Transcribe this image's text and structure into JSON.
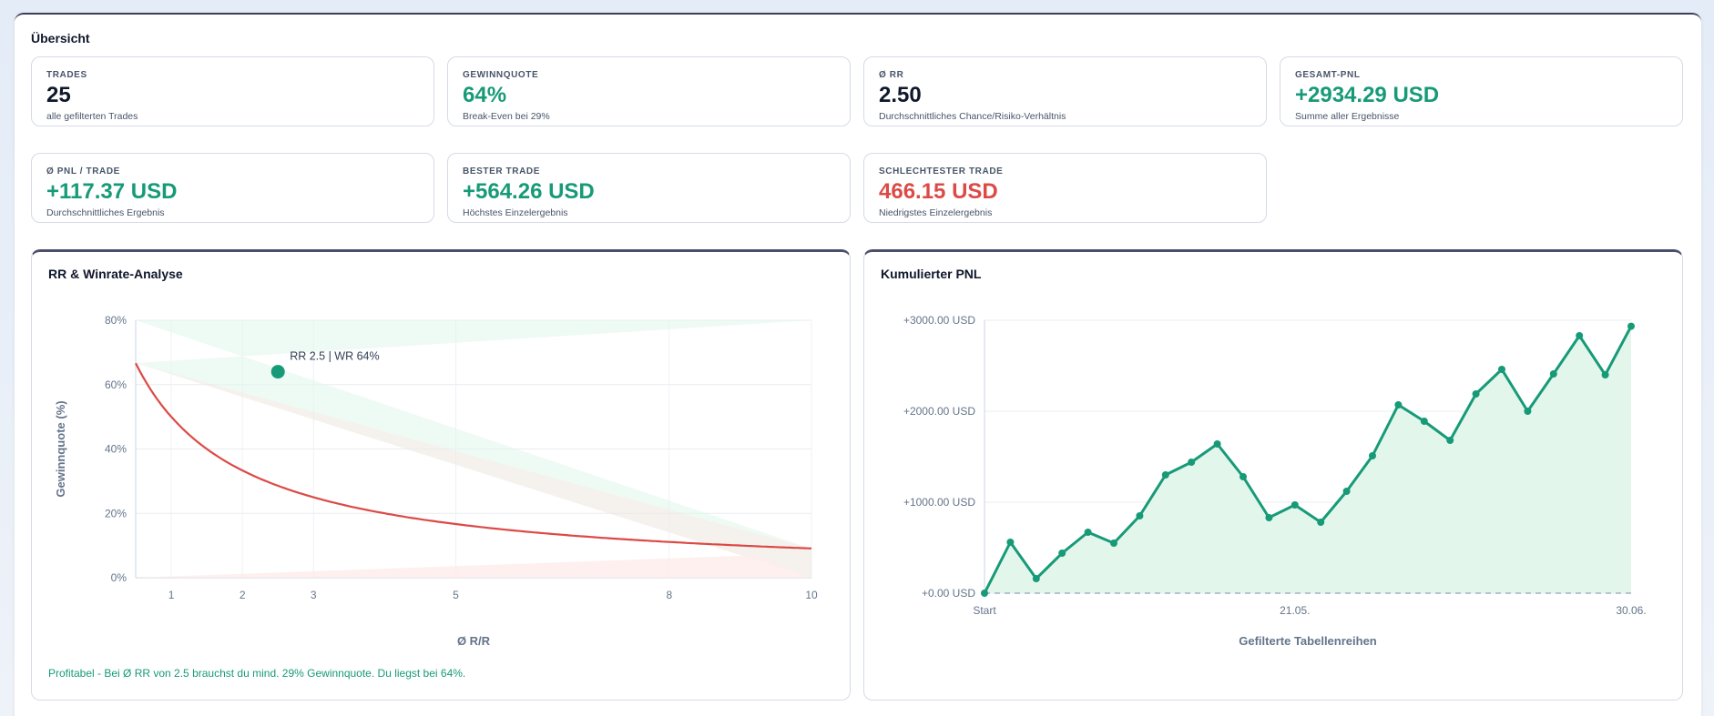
{
  "overview": {
    "title": "Übersicht"
  },
  "cards": [
    {
      "label": "TRADES",
      "value": "25",
      "sub": "alle gefilterten Trades",
      "tone": "dark"
    },
    {
      "label": "GEWINNQUOTE",
      "value": "64%",
      "sub": "Break-Even bei 29%",
      "tone": "green"
    },
    {
      "label": "ø RR",
      "value": "2.50",
      "sub": "Durchschnittliches Chance/Risiko-Verhältnis",
      "tone": "dark"
    },
    {
      "label": "GESAMT-PNL",
      "value": "+2934.29 USD",
      "sub": "Summe aller Ergebnisse",
      "tone": "green"
    },
    {
      "label": "ø PNL / TRADE",
      "value": "+117.37 USD",
      "sub": "Durchschnittliches Ergebnis",
      "tone": "green"
    },
    {
      "label": "BESTER TRADE",
      "value": "+564.26 USD",
      "sub": "Höchstes Einzelergebnis",
      "tone": "green"
    },
    {
      "label": "SCHLECHTESTER TRADE",
      "value": "466.15 USD",
      "sub": "Niedrigstes Einzelergebnis",
      "tone": "red"
    }
  ],
  "colors": {
    "green": "#179a78",
    "red": "#dc4a46",
    "fill_green": "#e3f6ec",
    "fill_red": "#fdeceb"
  },
  "chart_data": [
    {
      "type": "line",
      "title": "RR & Winrate-Analyse",
      "xlabel": "Ø R/R",
      "ylabel": "Gewinnquote (%)",
      "xlim": [
        0.5,
        10
      ],
      "ylim": [
        0,
        80
      ],
      "x_ticks": [
        1,
        2,
        3,
        5,
        8,
        10
      ],
      "y_ticks": [
        "0%",
        "20%",
        "40%",
        "60%",
        "80%"
      ],
      "y_tick_values": [
        0,
        20,
        40,
        60,
        80
      ],
      "series": [
        {
          "style": "break-even-curve",
          "x": [
            0.5,
            1,
            2,
            3,
            5,
            8,
            10
          ],
          "y": [
            66.7,
            50,
            33.3,
            25,
            16.7,
            11.1,
            9.1
          ]
        }
      ],
      "point": {
        "x": 2.5,
        "y": 64,
        "label": "RR 2.5 | WR 64%"
      },
      "grid": true,
      "note": "Profitabel - Bei Ø RR von 2.5 brauchst du mind. 29% Gewinnquote. Du liegst bei 64%."
    },
    {
      "type": "area",
      "title": "Kumulierter PNL",
      "xlabel": "Gefilterte Tabellenreihen",
      "x_tick_labels": [
        "Start",
        "21.05.",
        "30.06."
      ],
      "x_tick_index": [
        0,
        12,
        25
      ],
      "ylim": [
        0,
        3000
      ],
      "y_ticks": [
        "+0.00 USD",
        "+1000.00 USD",
        "+2000.00 USD",
        "+3000.00 USD"
      ],
      "y_tick_values": [
        0,
        1000,
        2000,
        3000
      ],
      "values": [
        0,
        560,
        160,
        440,
        670,
        550,
        850,
        1300,
        1440,
        1640,
        1280,
        830,
        970,
        780,
        1120,
        1510,
        2070,
        1890,
        1680,
        2190,
        2460,
        2000,
        2410,
        2830,
        2400,
        2934.29
      ],
      "grid": true
    }
  ]
}
